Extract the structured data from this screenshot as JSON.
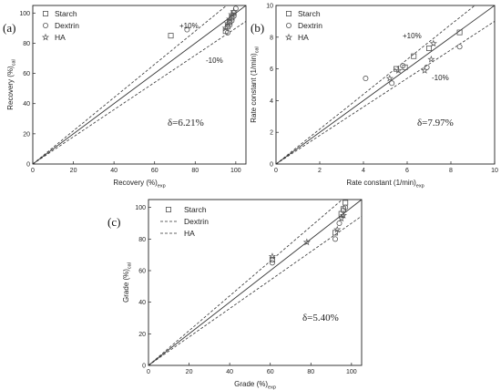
{
  "chart_data": [
    {
      "panel_label": "(a)",
      "type": "scatter",
      "xlabel": "Recovery (%)",
      "xlabel_sub": "exp",
      "ylabel": "Recovery (%)",
      "ylabel_sub": "cal",
      "xlim": [
        0,
        105
      ],
      "ylim": [
        0,
        105
      ],
      "xticks": [
        0,
        20,
        40,
        60,
        80,
        100
      ],
      "yticks": [
        0,
        20,
        40,
        60,
        80,
        100
      ],
      "legend_position": "top-left",
      "annotations": {
        "upper": "+10%",
        "lower": "-10%",
        "delta": "δ=6.21%"
      },
      "series": [
        {
          "name": "Starch",
          "marker": "square",
          "points": [
            [
              68,
              85
            ],
            [
              95,
              88
            ],
            [
              96,
              91
            ],
            [
              97,
              94
            ],
            [
              98,
              97
            ],
            [
              99,
              100
            ]
          ]
        },
        {
          "name": "Dextrin",
          "marker": "circle",
          "points": [
            [
              76,
              89
            ],
            [
              96,
              87
            ],
            [
              97,
              92
            ],
            [
              98,
              95
            ],
            [
              99,
              98
            ],
            [
              100,
              103
            ]
          ]
        },
        {
          "name": "HA",
          "marker": "star",
          "points": [
            [
              95,
              90
            ],
            [
              96,
              93
            ],
            [
              97,
              96
            ],
            [
              98,
              99
            ],
            [
              99,
              101
            ]
          ]
        }
      ]
    },
    {
      "panel_label": "(b)",
      "type": "scatter",
      "xlabel": "Rate constant (1/min)",
      "xlabel_sub": "exp",
      "ylabel": "Rate constant (1/min)",
      "ylabel_sub": "cal",
      "xlim": [
        0,
        10
      ],
      "ylim": [
        0,
        10
      ],
      "xticks": [
        0,
        2,
        4,
        6,
        8,
        10
      ],
      "yticks": [
        0,
        2,
        4,
        6,
        8,
        10
      ],
      "legend_position": "top-left",
      "annotations": {
        "upper": "+10%",
        "lower": "-10%",
        "delta": "δ=7.97%"
      },
      "series": [
        {
          "name": "Starch",
          "marker": "square",
          "points": [
            [
              5.5,
              6.0
            ],
            [
              5.9,
              6.1
            ],
            [
              6.3,
              6.8
            ],
            [
              7.0,
              7.3
            ],
            [
              8.4,
              8.3
            ]
          ]
        },
        {
          "name": "Dextrin",
          "marker": "circle",
          "points": [
            [
              4.1,
              5.4
            ],
            [
              5.3,
              5.1
            ],
            [
              5.8,
              6.2
            ],
            [
              6.9,
              6.1
            ],
            [
              8.4,
              7.4
            ]
          ]
        },
        {
          "name": "HA",
          "marker": "star",
          "points": [
            [
              5.2,
              5.4
            ],
            [
              5.6,
              5.9
            ],
            [
              6.8,
              5.9
            ],
            [
              7.1,
              6.6
            ],
            [
              7.2,
              7.6
            ]
          ]
        }
      ]
    },
    {
      "panel_label": "(c)",
      "type": "scatter",
      "xlabel": "Grade (%)",
      "xlabel_sub": "exp",
      "ylabel": "Grade (%)",
      "ylabel_sub": "cal",
      "xlim": [
        0,
        105
      ],
      "ylim": [
        0,
        105
      ],
      "xticks": [
        0,
        20,
        40,
        60,
        80,
        100
      ],
      "yticks": [
        0,
        20,
        40,
        60,
        80,
        100
      ],
      "legend_position": "top-left",
      "annotations": {
        "delta": "δ=5.40%"
      },
      "series": [
        {
          "name": "Starch",
          "marker": "square",
          "points": [
            [
              61,
              67
            ],
            [
              92,
              84
            ],
            [
              95,
              96
            ],
            [
              96,
              99
            ],
            [
              97,
              103
            ]
          ]
        },
        {
          "name": "Dextrin",
          "marker": "circle",
          "points": [
            [
              61,
              65
            ],
            [
              92,
              80
            ],
            [
              94,
              90
            ],
            [
              96,
              98
            ],
            [
              97,
              100
            ]
          ]
        },
        {
          "name": "HA",
          "marker": "star",
          "points": [
            [
              61,
              69
            ],
            [
              78,
              78
            ],
            [
              93,
              86
            ],
            [
              95,
              93
            ],
            [
              96,
              95
            ]
          ]
        }
      ]
    }
  ]
}
